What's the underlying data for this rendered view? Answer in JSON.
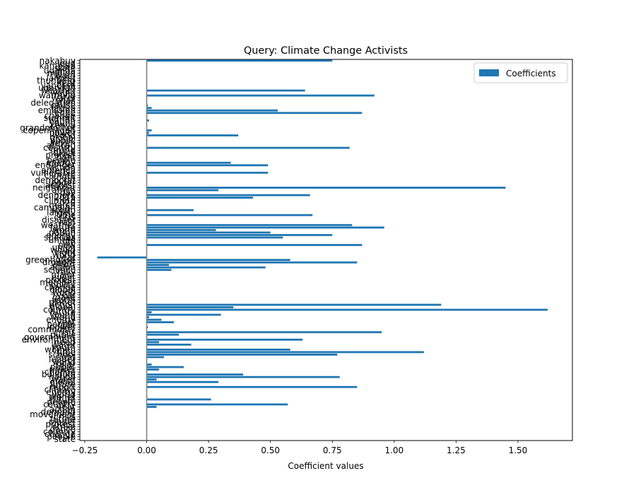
{
  "chart_data": {
    "type": "bar",
    "orientation": "horizontal",
    "title": "Query: Climate Change Activists",
    "xlabel": "Coefficient values",
    "ylabel": "",
    "xlim": [
      -0.27,
      1.72
    ],
    "xticks": [
      -0.25,
      0.0,
      0.25,
      0.5,
      0.75,
      1.0,
      1.25,
      1.5
    ],
    "xtick_labels": [
      "−0.25",
      "0.00",
      "0.25",
      "0.50",
      "0.75",
      "1.00",
      "1.25",
      "1.50"
    ],
    "legend": {
      "label": "Coefficients",
      "position": "upper right"
    },
    "zero_line": true,
    "grid": false,
    "bar_color": "#1f77b4",
    "zero_line_color": "#808080",
    "categories": [
      "nakabuy",
      "loud",
      "kampala",
      "state",
      "uganda",
      "million",
      "warn",
      "largest",
      "thunberg",
      "heat",
      "vanessa",
      "ugandan",
      "weather",
      "would",
      "warming",
      "water",
      "shall",
      "delegation",
      "cause",
      "group",
      "emission",
      "edge",
      "change",
      "summit",
      "nation",
      "young",
      "kenya",
      "grandmother",
      "copenhagen",
      "power",
      "world",
      "global",
      "public",
      "seven",
      "african",
      "country",
      "strong",
      "black",
      "protest",
      "fight",
      "people",
      "energy",
      "endanger",
      "action",
      "america",
      "vulnerable",
      "climate",
      "south",
      "democrat",
      "leader",
      "activist",
      "neighbour",
      "africa",
      "day",
      "denmark",
      "2019",
      "climate",
      "2020",
      "march",
      "campaign",
      "storm",
      "largely",
      "time",
      "crisis",
      "disaster",
      "rain",
      "weather",
      "future",
      "world",
      "nation",
      "energy",
      "species",
      "united",
      "life",
      "new",
      "union",
      "would",
      "right",
      "world",
      "year",
      "greenhouse",
      "drought",
      "effort",
      "action",
      "science",
      "rally",
      "major",
      "event",
      "protest",
      "member",
      "policy",
      "change",
      "global",
      "world",
      "year",
      "make",
      "warm",
      "planet",
      "action",
      "global",
      "country",
      "future",
      "young",
      "world",
      "energy",
      "year",
      "people",
      "power",
      "community",
      "crisis",
      "public",
      "government",
      "environment",
      "need",
      "water",
      "youth",
      "women",
      "time",
      "school",
      "right",
      "leader",
      "world",
      "solar",
      "public",
      "power",
      "change",
      "building",
      "nation",
      "water",
      "global",
      "future",
      "report",
      "climate",
      "energy",
      "world",
      "planet",
      "future",
      "people",
      "country",
      "year",
      "action",
      "demand",
      "movement",
      "crisis",
      "future",
      "planet",
      "protest",
      "strike",
      "dance",
      "country",
      "change",
      "people",
      "state"
    ],
    "values": [
      0.75,
      0.0,
      0.0,
      0.0,
      0.0,
      0.0,
      0.0,
      0.0,
      0.0,
      0.0,
      0.0,
      0.0,
      0.64,
      0.0,
      0.92,
      0.0,
      0.0,
      0.0,
      0.005,
      0.02,
      0.53,
      0.87,
      0.0,
      0.0,
      0.01,
      0.0,
      0.0,
      0.0,
      0.02,
      0.01,
      0.37,
      0.0,
      0.0,
      0.0,
      0.0,
      0.82,
      0.0,
      0.0,
      0.0,
      0.0,
      0.0,
      0.34,
      0.49,
      0.0,
      0.0,
      0.49,
      0.0,
      0.0,
      0.0,
      0.0,
      0.0,
      1.45,
      0.29,
      0.0,
      0.66,
      0.43,
      0.0,
      0.0,
      0.0,
      0.0,
      0.19,
      0.0,
      0.67,
      0.0,
      0.0,
      0.0,
      0.83,
      0.96,
      0.28,
      0.5,
      0.75,
      0.55,
      0.0,
      0.0,
      0.87,
      0.0,
      0.0,
      0.0,
      0.0,
      -0.2,
      0.58,
      0.85,
      0.09,
      0.48,
      0.1,
      0.0,
      0.0,
      0.0,
      0.0,
      0.0,
      0.0,
      0.0,
      0.0,
      0.0,
      0.0,
      0.0,
      0.0,
      0.0,
      1.19,
      0.35,
      1.62,
      0.02,
      0.3,
      0.01,
      0.06,
      0.11,
      0.0,
      0.005,
      0.0,
      0.95,
      0.13,
      0.0,
      0.63,
      0.05,
      0.18,
      0.0,
      0.58,
      1.12,
      0.77,
      0.07,
      0.0,
      0.0,
      0.02,
      0.15,
      0.05,
      0.0,
      0.39,
      0.78,
      0.04,
      0.29,
      0.0,
      0.85,
      0.0,
      0.0,
      0.0,
      0.0,
      0.26,
      0.0,
      0.57,
      0.04,
      0.0,
      0.0,
      0.0,
      0.0,
      0.0,
      0.0,
      0.0,
      0.0,
      0.0,
      0.0,
      0.0,
      0.0,
      0.0
    ]
  }
}
